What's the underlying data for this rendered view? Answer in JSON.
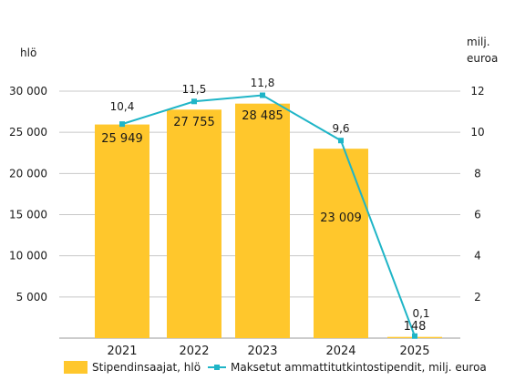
{
  "chart_data": {
    "type": "bar",
    "categories": [
      "2021",
      "2022",
      "2023",
      "2024",
      "2025"
    ],
    "y_left": {
      "unit": "hlö",
      "ticks": [
        "30 000",
        "25 000",
        "20 000",
        "15 000",
        "10 000",
        "5 000"
      ],
      "ylim": [
        0,
        30000
      ]
    },
    "y_right": {
      "unit_line1": "milj.",
      "unit_line2": "euroa",
      "ticks": [
        "12",
        "10",
        "8",
        "6",
        "4",
        "2"
      ],
      "ylim": [
        0,
        12
      ]
    },
    "bars": {
      "name": "Stipendinsaajat, hlö",
      "color": "#FFC72C",
      "values": [
        25949,
        27755,
        28485,
        23009,
        148
      ],
      "labels": [
        "25 949",
        "27 755",
        "28 485",
        "23 009",
        "148"
      ]
    },
    "line": {
      "name": "Maksetut ammattitutkintostipendit, milj. euroa",
      "color": "#1FB5C7",
      "values": [
        10.4,
        11.5,
        11.8,
        9.6,
        0.1
      ],
      "labels": [
        "10,4",
        "11,5",
        "11,8",
        "9,6",
        "0,1"
      ]
    },
    "grid": true,
    "legend": "bottom"
  }
}
